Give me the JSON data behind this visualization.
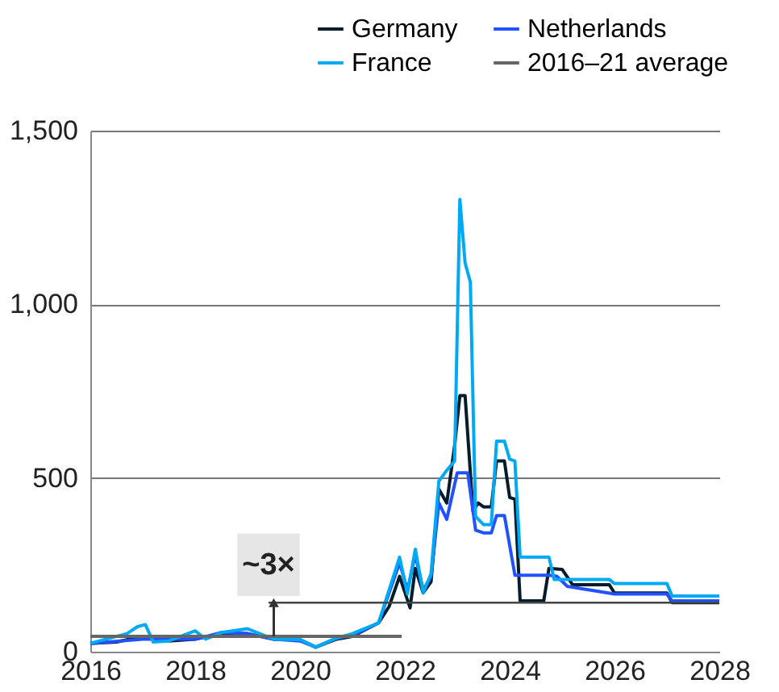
{
  "chart_data": {
    "type": "line",
    "legend": "top right",
    "grid": "y",
    "line_style": "solid",
    "marker": "none",
    "xlim": [
      2016,
      2028
    ],
    "xticks": [
      2016,
      2018,
      2020,
      2022,
      2024,
      2026,
      2028
    ],
    "ylim": [
      0,
      1500
    ],
    "yticks": [
      0,
      {
        "value": 500,
        "label": "500"
      },
      {
        "value": 1000,
        "label": "1,000"
      },
      {
        "value": 1500,
        "label": "1,500"
      }
    ],
    "annotations": [
      {
        "text": "~3×",
        "x": 2019.4,
        "y": 250
      }
    ],
    "series": [
      {
        "name": "Germany",
        "color": "#051c2c",
        "x": [
          2016,
          2016.5,
          2017,
          2017.5,
          2018,
          2018.5,
          2019,
          2019.5,
          2020,
          2020.3,
          2020.7,
          2021,
          2021.5,
          2021.7,
          2021.9,
          2022.1,
          2022.2,
          2022.35,
          2022.5,
          2022.65,
          2022.8,
          2022.95,
          2023.05,
          2023.15,
          2023.3,
          2023.4,
          2023.5,
          2023.65,
          2023.75,
          2023.9,
          2024,
          2024.1,
          2024.2,
          2024.65,
          2024.75,
          2025,
          2025.2,
          2025.9,
          2026,
          2027,
          2027.1,
          2028
        ],
        "values": [
          24,
          28,
          44,
          31,
          36,
          52,
          52,
          36,
          35,
          13,
          36,
          44,
          83,
          130,
          217,
          126,
          240,
          169,
          201,
          468,
          428,
          593,
          737,
          737,
          405,
          428,
          417,
          417,
          549,
          549,
          444,
          439,
          146,
          146,
          240,
          237,
          193,
          193,
          169,
          169,
          141,
          141
        ]
      },
      {
        "name": "Netherlands",
        "color": "#2251ff",
        "x": [
          2016,
          2017,
          2018,
          2018.5,
          2019,
          2019.5,
          2020,
          2020.3,
          2020.7,
          2021,
          2021.5,
          2021.9,
          2022.05,
          2022.2,
          2022.35,
          2022.5,
          2022.65,
          2022.8,
          2023,
          2023.2,
          2023.35,
          2023.5,
          2023.65,
          2023.75,
          2023.9,
          2024.1,
          2024.75,
          2024.9,
          2025.1,
          2026,
          2027,
          2027.1,
          2028
        ],
        "values": [
          24,
          36,
          36,
          55,
          52,
          36,
          31,
          13,
          39,
          47,
          83,
          256,
          177,
          279,
          177,
          217,
          428,
          381,
          515,
          515,
          350,
          342,
          342,
          392,
          392,
          220,
          220,
          217,
          188,
          166,
          166,
          146,
          146
        ]
      },
      {
        "name": "France",
        "color": "#00a9f4",
        "x": [
          2016,
          2016.7,
          2016.9,
          2017.05,
          2017.2,
          2017.5,
          2018,
          2018.2,
          2018.5,
          2019,
          2019.5,
          2020,
          2020.3,
          2020.7,
          2021,
          2021.5,
          2021.9,
          2022.05,
          2022.2,
          2022.35,
          2022.5,
          2022.65,
          2022.8,
          2022.95,
          2023.05,
          2023.15,
          2023.25,
          2023.35,
          2023.5,
          2023.65,
          2023.75,
          2023.9,
          2024,
          2024.1,
          2024.2,
          2024.75,
          2024.85,
          2025.9,
          2026,
          2027,
          2027.1,
          2028
        ],
        "values": [
          24,
          52,
          72,
          78,
          28,
          31,
          60,
          36,
          55,
          66,
          36,
          35,
          13,
          39,
          52,
          83,
          272,
          166,
          295,
          169,
          224,
          491,
          522,
          549,
          1302,
          1119,
          1064,
          389,
          366,
          366,
          606,
          606,
          554,
          549,
          272,
          272,
          208,
          208,
          196,
          196,
          160,
          160
        ]
      },
      {
        "name": "2016–21 average",
        "color": "#666666",
        "x": [
          2016,
          2021.94
        ],
        "values": [
          44,
          44
        ]
      },
      {
        "color": "#444444",
        "x": [
          2019.4,
          2028
        ],
        "values": [
          141,
          141
        ]
      }
    ]
  }
}
